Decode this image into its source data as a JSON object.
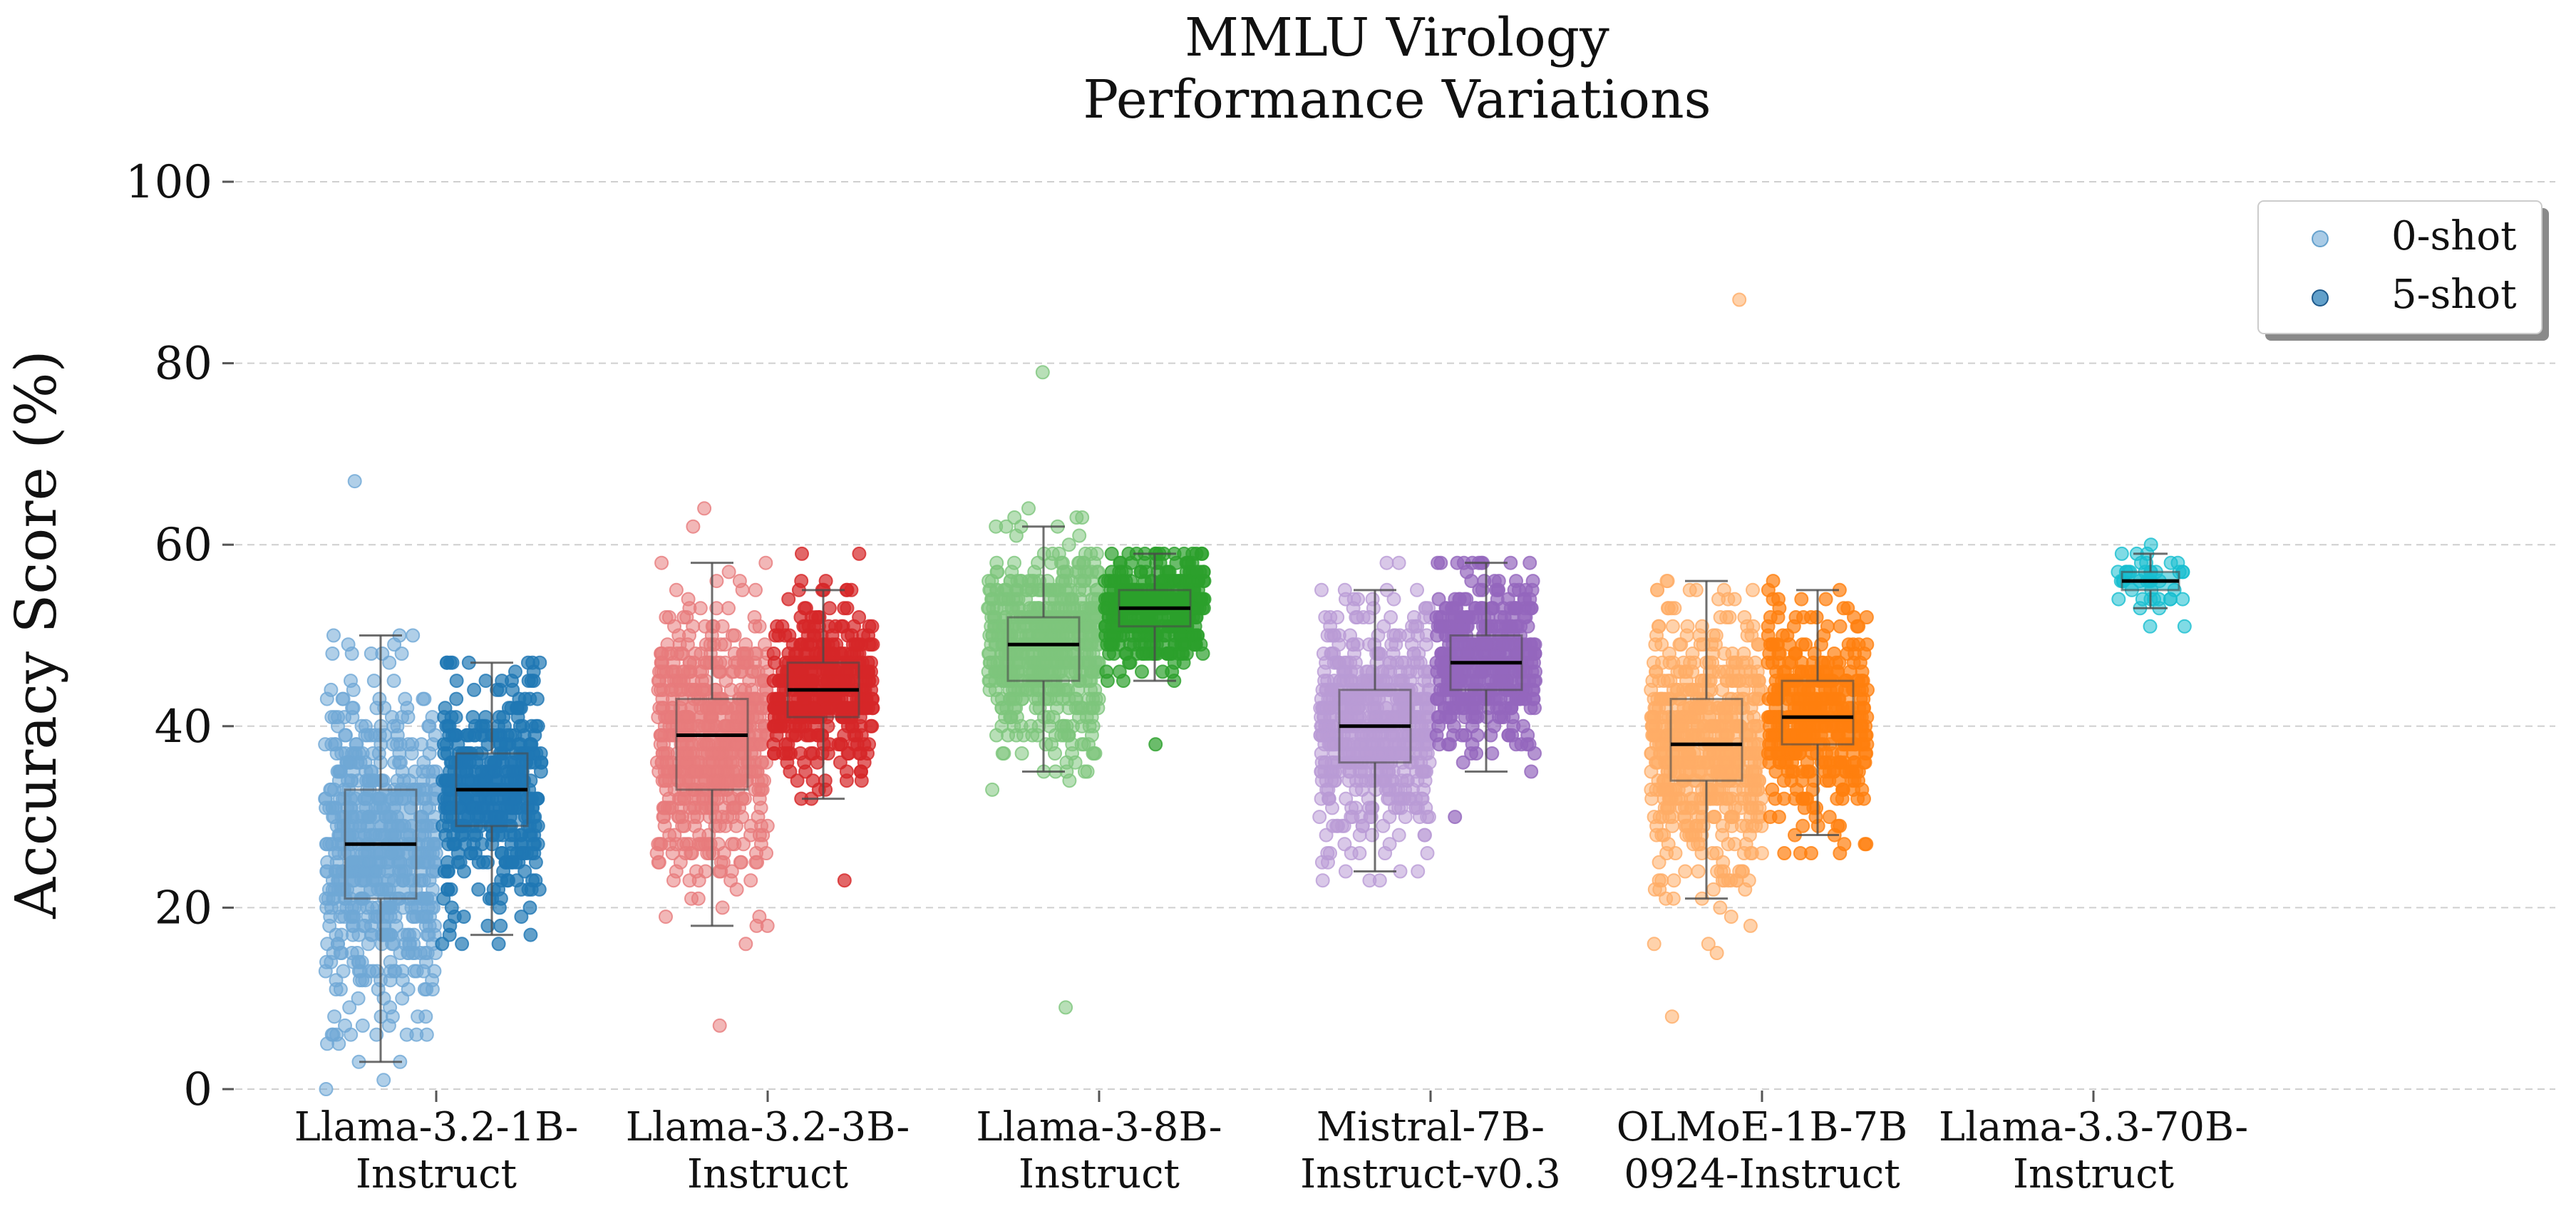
{
  "chart_data": {
    "type": "box-strip",
    "title": [
      "MMLU Virology",
      "Performance Variations"
    ],
    "ylabel": "Accuracy Score (%)",
    "xlabel": "",
    "ylim": [
      0,
      100
    ],
    "yticks": [
      0,
      20,
      40,
      60,
      80,
      100
    ],
    "grid": "horizontal-dashed",
    "legend": {
      "position": "top-right",
      "entries": [
        {
          "label": "0-shot",
          "series": "0-shot"
        },
        {
          "label": "5-shot",
          "series": "5-shot"
        }
      ]
    },
    "models": [
      {
        "label": [
          "Llama-3.2-1B-",
          "Instruct"
        ],
        "colors": {
          "0-shot": "#6fa8d6",
          "5-shot": "#1f77b4"
        },
        "series": [
          {
            "name": "0-shot",
            "box": {
              "whislo": 3,
              "q1": 21,
              "med": 27,
              "q3": 33,
              "whishi": 50
            },
            "min": 0,
            "max": 67
          },
          {
            "name": "5-shot",
            "box": {
              "whislo": 17,
              "q1": 29,
              "med": 33,
              "q3": 37,
              "whishi": 47
            },
            "min": 16,
            "max": 47
          }
        ]
      },
      {
        "label": [
          "Llama-3.2-3B-",
          "Instruct"
        ],
        "colors": {
          "0-shot": "#e77b7c",
          "5-shot": "#d62728"
        },
        "series": [
          {
            "name": "0-shot",
            "box": {
              "whislo": 18,
              "q1": 33,
              "med": 39,
              "q3": 43,
              "whishi": 58
            },
            "min": 7,
            "max": 64
          },
          {
            "name": "5-shot",
            "box": {
              "whislo": 32,
              "q1": 41,
              "med": 44,
              "q3": 47,
              "whishi": 55
            },
            "min": 23,
            "max": 59
          }
        ]
      },
      {
        "label": [
          "Llama-3-8B-",
          "Instruct"
        ],
        "colors": {
          "0-shot": "#7dc57c",
          "5-shot": "#2ca02c"
        },
        "series": [
          {
            "name": "0-shot",
            "box": {
              "whislo": 35,
              "q1": 45,
              "med": 49,
              "q3": 52,
              "whishi": 62
            },
            "min": 9,
            "max": 79
          },
          {
            "name": "5-shot",
            "box": {
              "whislo": 45,
              "q1": 51,
              "med": 53,
              "q3": 55,
              "whishi": 59
            },
            "min": 38,
            "max": 59
          }
        ]
      },
      {
        "label": [
          "Mistral-7B-",
          "Instruct-v0.3"
        ],
        "colors": {
          "0-shot": "#b99bd6",
          "5-shot": "#9467bd"
        },
        "series": [
          {
            "name": "0-shot",
            "box": {
              "whislo": 24,
              "q1": 36,
              "med": 40,
              "q3": 44,
              "whishi": 55
            },
            "min": 23,
            "max": 58
          },
          {
            "name": "5-shot",
            "box": {
              "whislo": 35,
              "q1": 44,
              "med": 47,
              "q3": 50,
              "whishi": 58
            },
            "min": 30,
            "max": 58
          }
        ]
      },
      {
        "label": [
          "OLMoE-1B-7B",
          "0924-Instruct"
        ],
        "colors": {
          "0-shot": "#ffad66",
          "5-shot": "#ff7f0e"
        },
        "series": [
          {
            "name": "0-shot",
            "box": {
              "whislo": 21,
              "q1": 34,
              "med": 38,
              "q3": 43,
              "whishi": 56
            },
            "min": 8,
            "max": 87
          },
          {
            "name": "5-shot",
            "box": {
              "whislo": 28,
              "q1": 38,
              "med": 41,
              "q3": 45,
              "whishi": 55
            },
            "min": 26,
            "max": 56
          }
        ]
      },
      {
        "label": [
          "Llama-3.3-70B-",
          "Instruct"
        ],
        "colors": {
          "0-shot": "#17becf",
          "5-shot": "#17becf"
        },
        "series": [
          {
            "name": "0-shot",
            "box": {
              "whislo": 53,
              "q1": 55,
              "med": 56,
              "q3": 57,
              "whishi": 59
            },
            "min": 51,
            "max": 60
          }
        ]
      }
    ]
  }
}
